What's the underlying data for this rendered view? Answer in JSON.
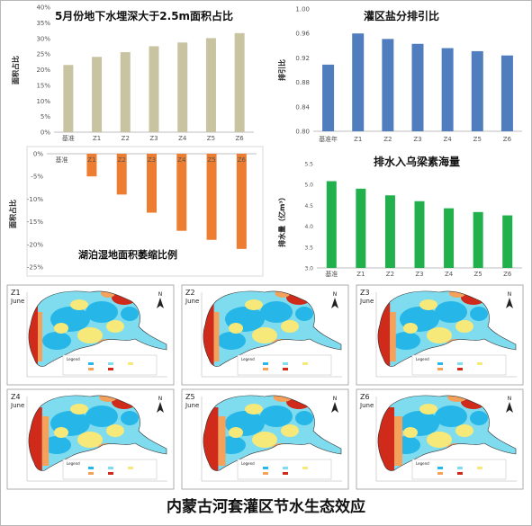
{
  "footer": {
    "title": "内蒙古河套灌区节水生态效应"
  },
  "colors": {
    "bar_tan": "#c8c3a1",
    "bar_blue": "#4f7dbd",
    "bar_orange": "#ed7d31",
    "bar_green": "#21b04b",
    "map_blue": "#27b6e8",
    "map_cyan": "#7fdcef",
    "map_yellow": "#f6e97a",
    "map_orange": "#f4a15c",
    "map_red": "#cf2a1a"
  },
  "chart_data": [
    {
      "type": "bar",
      "title": "5月份地下水埋深大于2.5m面积占比",
      "xlabel": "",
      "ylabel": "面积占比",
      "categories": [
        "基准",
        "Z1",
        "Z2",
        "Z3",
        "Z4",
        "Z5",
        "Z6"
      ],
      "values": [
        21.5,
        24.1,
        25.6,
        27.5,
        28.7,
        30.1,
        31.7
      ],
      "ylim": [
        0,
        40
      ],
      "yticks": [
        "0%",
        "5%",
        "10%",
        "15%",
        "20%",
        "25%",
        "30%",
        "35%",
        "40%"
      ],
      "grid": false
    },
    {
      "type": "bar",
      "title": "灌区盐分排引比",
      "xlabel": "",
      "ylabel": "排引比",
      "categories": [
        "基准年",
        "Z1",
        "Z2",
        "Z3",
        "Z4",
        "Z5",
        "Z6"
      ],
      "values": [
        0.909,
        0.96,
        0.951,
        0.943,
        0.936,
        0.931,
        0.924
      ],
      "ylim": [
        0.8,
        1.0
      ],
      "yticks": [
        "0.80",
        "0.84",
        "0.88",
        "0.92",
        "0.96",
        "1.00"
      ],
      "grid": false
    },
    {
      "type": "bar",
      "title": "湖泊湿地面积萎缩比例",
      "xlabel": "",
      "ylabel": "面积占比",
      "categories": [
        "基准",
        "Z1",
        "Z2",
        "Z3",
        "Z4",
        "Z5",
        "Z6"
      ],
      "values": [
        0,
        -5.0,
        -9.0,
        -13.0,
        -17.0,
        -19.0,
        -21.0
      ],
      "ylim": [
        -25,
        0
      ],
      "yticks": [
        "0%",
        "-5%",
        "-10%",
        "-15%",
        "-20%",
        "-25%"
      ],
      "grid": false
    },
    {
      "type": "bar",
      "title": "排水入乌梁素海量",
      "xlabel": "",
      "ylabel": "排水量（亿m³）",
      "categories": [
        "基准",
        "Z1",
        "Z2",
        "Z3",
        "Z4",
        "Z5",
        "Z6"
      ],
      "values": [
        5.08,
        4.9,
        4.74,
        4.6,
        4.43,
        4.34,
        4.26
      ],
      "ylim": [
        3.0,
        5.5
      ],
      "yticks": [
        "3.0",
        "3.5",
        "4.0",
        "4.5",
        "5.0",
        "5.5"
      ],
      "grid": false
    }
  ],
  "maps": [
    {
      "label": "Z1",
      "month": "June",
      "north": "N",
      "legend": "Legend"
    },
    {
      "label": "Z2",
      "month": "June",
      "north": "N",
      "legend": "Legend"
    },
    {
      "label": "Z3",
      "month": "June",
      "north": "N",
      "legend": "Legend"
    },
    {
      "label": "Z4",
      "month": "June",
      "north": "N",
      "legend": "Legend"
    },
    {
      "label": "Z5",
      "month": "June",
      "north": "N",
      "legend": "Legend"
    },
    {
      "label": "Z6",
      "month": "June",
      "north": "N",
      "legend": "Legend"
    }
  ]
}
